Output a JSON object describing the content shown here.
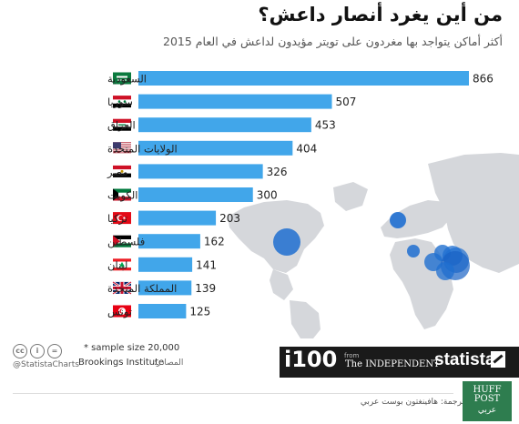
{
  "title": "من أين يغرد أنصار داعش؟",
  "subtitle": "أكثر أماكن يتواجد بها مغردون على تويتر مؤيدون لداعش في العام 2015",
  "colors": {
    "bar": "#41a6ea",
    "map_land": "#d5d7db",
    "bubble": "#1f6fd0"
  },
  "chart_data": {
    "type": "bar",
    "orientation": "horizontal",
    "title": "من أين يغرد أنصار داعش؟",
    "subtitle": "أكثر أماكن يتواجد بها مغردون على تويتر مؤيدون لداعش في العام 2015",
    "categories": [
      "السعودية",
      "سوريا",
      "العراق",
      "الولايات المتحدة",
      "مصر",
      "الكويت",
      "تركيا",
      "فلسطين",
      "لبنان",
      "المملكة المتحدة",
      "تونس"
    ],
    "values": [
      866,
      507,
      453,
      404,
      326,
      300,
      203,
      162,
      141,
      139,
      125
    ],
    "flags": [
      "saudi-flag-icon",
      "syria-flag-icon",
      "iraq-flag-icon",
      "usa-flag-icon",
      "egypt-flag-icon",
      "kuwait-flag-icon",
      "turkey-flag-icon",
      "palestine-flag-icon",
      "lebanon-flag-icon",
      "uk-flag-icon",
      "tunisia-flag-icon"
    ],
    "xlim": [
      0,
      866
    ],
    "grid": false
  },
  "footer": {
    "sample_note": "* sample size 20,000",
    "sources_label": "المصادر:",
    "sources": "Brookings Institute",
    "handle": "@StatistaCharts",
    "cc_icons": [
      "cc",
      "i",
      "="
    ],
    "i100": "i100",
    "from": "from",
    "independent": "The INDEPENDENT",
    "statista": "statista",
    "translation": "ترجمة: هافينغتون بوست عربي",
    "huff_line1": "HUFF",
    "huff_line2": "POST",
    "huff_line3": "عربي"
  }
}
